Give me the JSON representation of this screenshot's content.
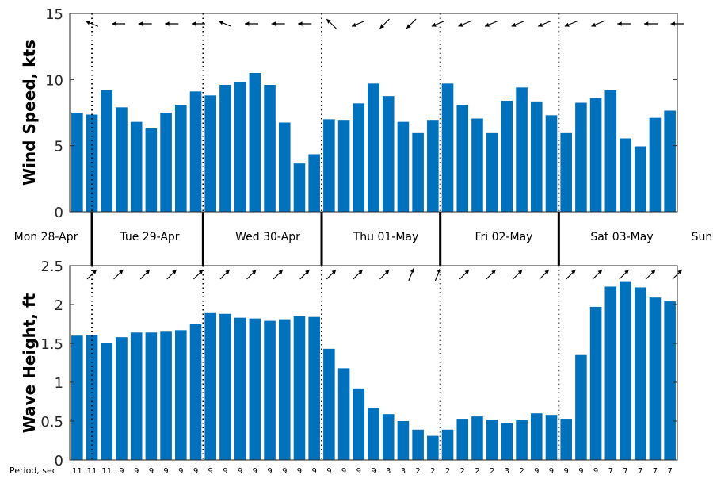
{
  "colors": {
    "bar": "#0072bd",
    "axis": "#262626",
    "text": "#000000"
  },
  "chart_data": [
    {
      "type": "bar",
      "ylabel": "Wind Speed, kts",
      "ylim": [
        0,
        15
      ],
      "yticks": [
        "0",
        "5",
        "10",
        "15"
      ],
      "values": [
        7.5,
        7.35,
        9.2,
        7.9,
        6.8,
        6.3,
        7.5,
        8.1,
        9.1,
        8.8,
        9.6,
        9.8,
        10.5,
        9.6,
        6.75,
        3.65,
        4.35,
        7.0,
        6.95,
        8.2,
        9.7,
        8.75,
        6.8,
        5.95,
        6.95,
        9.7,
        8.1,
        7.05,
        5.95,
        8.4,
        9.4,
        8.35,
        7.3,
        5.95,
        8.25,
        8.6,
        9.2,
        5.55,
        4.95,
        7.1,
        7.65
      ],
      "direction_arrows": [
        "west-northwest",
        "west",
        "west",
        "west",
        "west",
        "west-northwest",
        "west",
        "west",
        "west",
        "northwest",
        "west-southwest",
        "southwest",
        "southwest",
        "west-southwest",
        "west-southwest",
        "west-southwest",
        "west-southwest",
        "west-southwest",
        "west-southwest",
        "west-southwest",
        "west",
        "west",
        "west"
      ],
      "grid": false
    },
    {
      "type": "bar",
      "ylabel": "Wave Height, ft",
      "ylim": [
        0,
        2.5
      ],
      "yticks": [
        "0",
        "0.5",
        "1",
        "1.5",
        "2",
        "2.5"
      ],
      "values": [
        1.6,
        1.61,
        1.51,
        1.58,
        1.64,
        1.64,
        1.65,
        1.67,
        1.75,
        1.89,
        1.88,
        1.83,
        1.82,
        1.79,
        1.81,
        1.85,
        1.84,
        1.43,
        1.18,
        0.92,
        0.67,
        0.59,
        0.5,
        0.39,
        0.31,
        0.39,
        0.53,
        0.56,
        0.52,
        0.47,
        0.51,
        0.6,
        0.58,
        0.53,
        1.35,
        1.97,
        2.23,
        2.3,
        2.22,
        2.09,
        2.04
      ],
      "direction_arrows": [
        "northeast",
        "northeast",
        "northeast",
        "northeast",
        "northeast",
        "northeast",
        "northeast",
        "northeast",
        "northeast",
        "northeast",
        "northeast",
        "northeast",
        "north-northeast",
        "north-northeast",
        "northeast",
        "northeast",
        "northeast",
        "northeast",
        "northeast",
        "northeast",
        "northeast",
        "northeast",
        "northeast"
      ],
      "grid": false
    }
  ],
  "days": [
    "Mon 28-Apr",
    "Tue 29-Apr",
    "Wed 30-Apr",
    "Thu 01-May",
    "Fri 02-May",
    "Sat 03-May",
    "Sun"
  ],
  "period_label": "Period, sec",
  "periods": [
    "11",
    "11",
    "11",
    "9",
    "9",
    "9",
    "9",
    "9",
    "9",
    "9",
    "9",
    "9",
    "9",
    "9",
    "9",
    "9",
    "9",
    "9",
    "9",
    "9",
    "9",
    "3",
    "3",
    "2",
    "2",
    "2",
    "2",
    "2",
    "2",
    "3",
    "2",
    "9",
    "9",
    "9",
    "9",
    "9",
    "7",
    "7",
    "7",
    "7",
    "7"
  ]
}
